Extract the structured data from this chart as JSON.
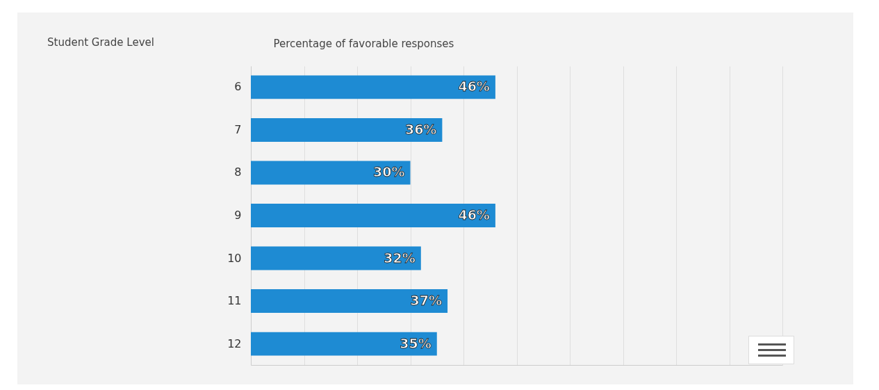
{
  "chart_data": {
    "type": "bar",
    "orientation": "horizontal",
    "xlabel": "Percentage of favorable responses",
    "annotations": [
      "Student Grade Level"
    ],
    "categories": [
      "6",
      "7",
      "8",
      "9",
      "10",
      "11",
      "12"
    ],
    "values": [
      46,
      36,
      30,
      46,
      32,
      37,
      35
    ],
    "value_labels": [
      "46%",
      "36%",
      "30%",
      "46%",
      "32%",
      "37%",
      "35%"
    ],
    "color": "#1e8bd3",
    "xlim": [
      0,
      100
    ],
    "xticks": [
      {
        "value": 0,
        "label": null
      },
      {
        "value": 10,
        "label": null
      },
      {
        "value": 20,
        "label": null
      },
      {
        "value": 30,
        "label": null
      },
      {
        "value": 40,
        "label": null
      },
      {
        "value": 50,
        "label": null
      },
      {
        "value": 60,
        "label": null
      },
      {
        "value": 70,
        "label": null
      },
      {
        "value": 80,
        "label": null
      },
      {
        "value": 90,
        "label": null
      },
      {
        "value": 100,
        "label": null
      }
    ],
    "grid": "x",
    "tick_labels": "y"
  }
}
